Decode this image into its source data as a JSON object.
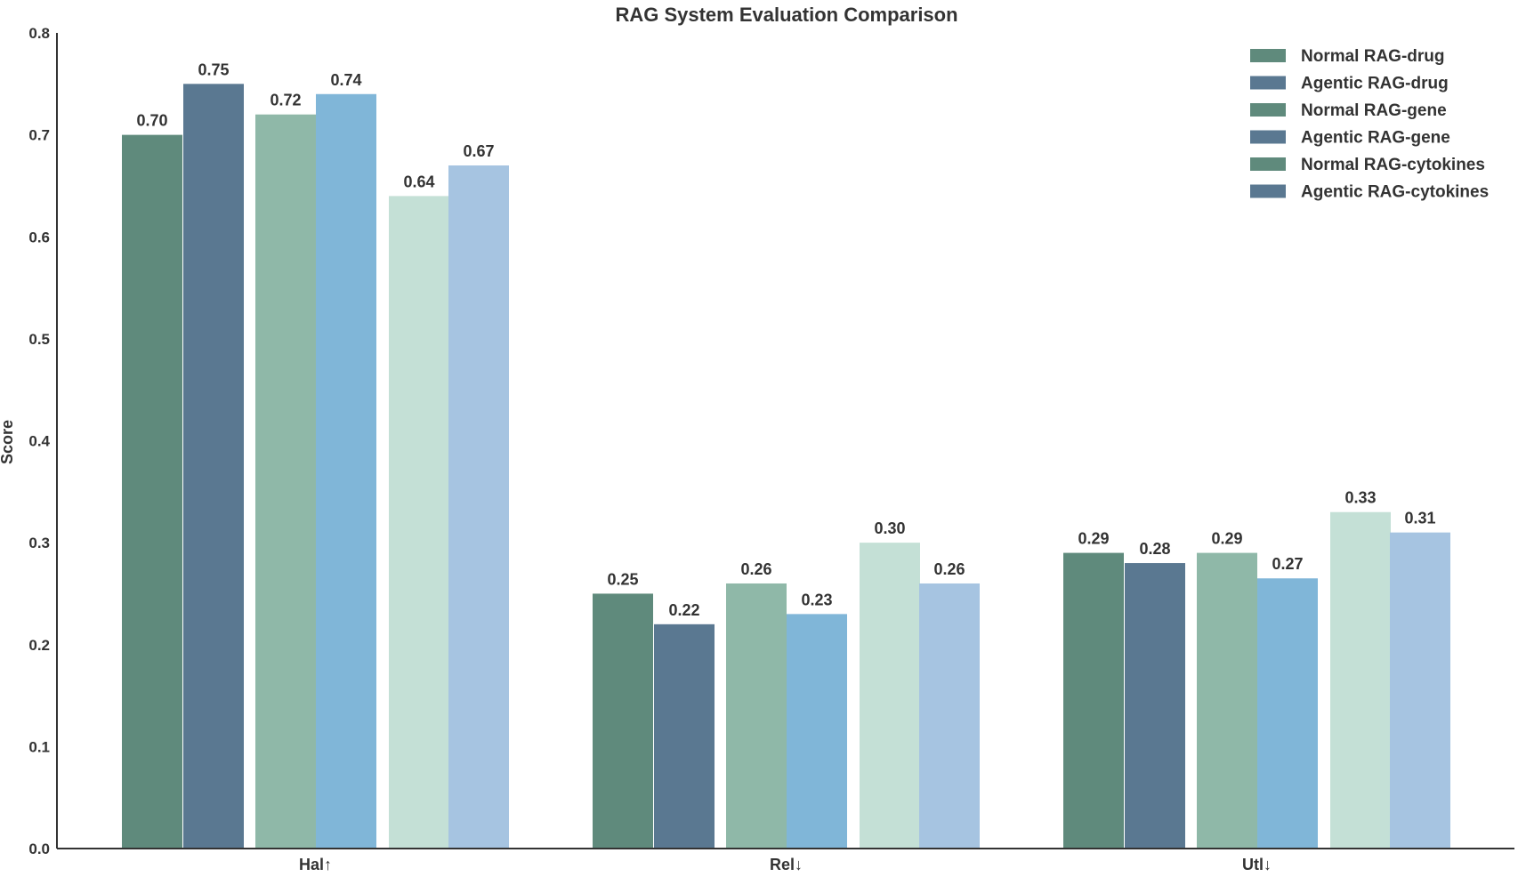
{
  "chart_data": {
    "type": "bar",
    "title": "RAG System Evaluation Comparison",
    "xlabel": "",
    "ylabel": "Score",
    "ylim": [
      0,
      0.8
    ],
    "yticks": [
      0.0,
      0.1,
      0.2,
      0.3,
      0.4,
      0.5,
      0.6,
      0.7,
      0.8
    ],
    "ytick_labels": [
      "0.0",
      "0.1",
      "0.2",
      "0.3",
      "0.4",
      "0.5",
      "0.6",
      "0.7",
      "0.8"
    ],
    "grid": false,
    "legend_position": "top-right",
    "categories": [
      "Hal↑",
      "Rel↓",
      "Utl↓"
    ],
    "series": [
      {
        "name": "Normal RAG-drug",
        "color": "#5f8a7c",
        "legend_color": "#5f8a7c",
        "values": [
          0.7,
          0.25,
          0.29
        ],
        "labels": [
          "0.70",
          "0.25",
          "0.29"
        ]
      },
      {
        "name": "Agentic RAG-drug",
        "color": "#5a7891",
        "legend_color": "#5a7891",
        "values": [
          0.75,
          0.22,
          0.28
        ],
        "labels": [
          "0.75",
          "0.22",
          "0.28"
        ]
      },
      {
        "name": "Normal RAG-gene",
        "color": "#8fb8a8",
        "legend_color": "#5f8a7c",
        "values": [
          0.72,
          0.26,
          0.29
        ],
        "labels": [
          "0.72",
          "0.26",
          "0.29"
        ]
      },
      {
        "name": "Agentic RAG-gene",
        "color": "#80b6d8",
        "legend_color": "#5a7891",
        "values": [
          0.74,
          0.23,
          0.265
        ],
        "labels": [
          "0.74",
          "0.23",
          "0.27"
        ]
      },
      {
        "name": "Normal RAG-cytokines",
        "color": "#c4e0d6",
        "legend_color": "#5f8a7c",
        "values": [
          0.64,
          0.3,
          0.33
        ],
        "labels": [
          "0.64",
          "0.30",
          "0.33"
        ]
      },
      {
        "name": "Agentic RAG-cytokines",
        "color": "#a6c4e1",
        "legend_color": "#5a7891",
        "values": [
          0.67,
          0.26,
          0.31
        ],
        "labels": [
          "0.67",
          "0.26",
          "0.31"
        ]
      }
    ]
  }
}
